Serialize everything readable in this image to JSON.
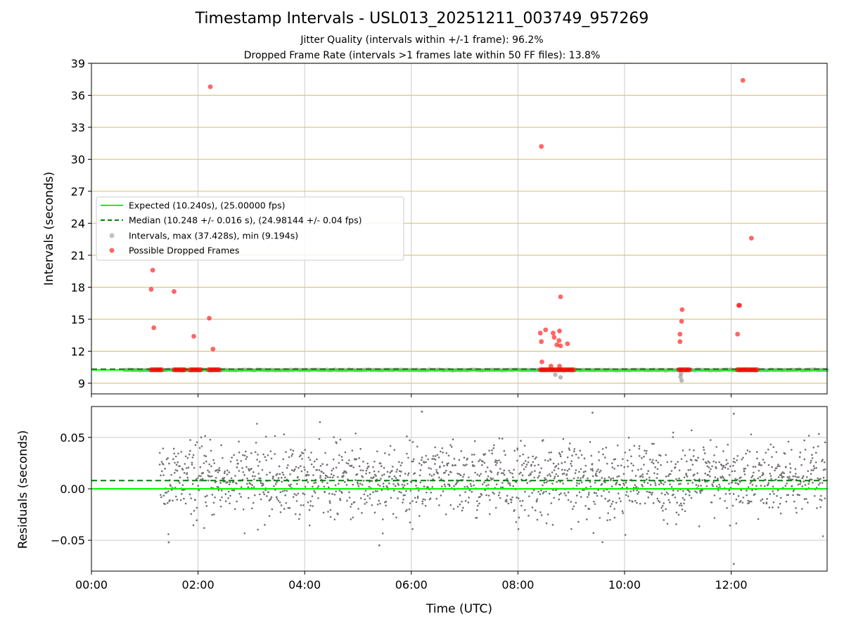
{
  "chart_data": [
    {
      "type": "scatter",
      "title": "Timestamp Intervals - USL013_20251211_003749_957269",
      "subtitle_lines": [
        "Jitter Quality (intervals within +/-1 frame): 96.2%",
        "Dropped Frame Rate (intervals >1 frames late within 50 FF files): 13.8%"
      ],
      "xlabel": "",
      "ylabel": "Intervals (seconds)",
      "xlim_hours": [
        0,
        13.8
      ],
      "ylim": [
        8,
        39
      ],
      "yticks": [
        9,
        12,
        15,
        18,
        21,
        24,
        27,
        30,
        33,
        36,
        39
      ],
      "ytick_labels": [
        "9",
        "12",
        "15",
        "18",
        "21",
        "24",
        "27",
        "30",
        "33",
        "36",
        "39"
      ],
      "xticks_hours": [
        0,
        2,
        4,
        6,
        8,
        10,
        12
      ],
      "grid": true,
      "legend_position": "center-left",
      "expected_interval": 10.24,
      "median_interval": 10.248,
      "series": [
        {
          "name": "Expected (10.240s), (25.00000 fps)",
          "kind": "line",
          "color": "#00ff00",
          "style": "solid",
          "y": 10.24
        },
        {
          "name": "Median (10.248 +/- 0.016 s), (24.98144 +/- 0.04 fps)",
          "kind": "line",
          "color": "#008000",
          "style": "dashed",
          "y": 10.248
        },
        {
          "name": "Intervals, max (37.428s), min (9.194s)",
          "kind": "scatter",
          "color": "#808080",
          "points": [
            [
              8.7,
              9.8
            ],
            [
              8.8,
              9.55
            ],
            [
              11.05,
              9.6
            ],
            [
              11.07,
              9.25
            ],
            [
              11.06,
              9.9
            ]
          ]
        },
        {
          "name": "Possible Dropped Frames",
          "kind": "scatter",
          "color": "#ff0000",
          "points": [
            [
              1.15,
              19.6
            ],
            [
              1.12,
              17.8
            ],
            [
              1.17,
              14.2
            ],
            [
              1.55,
              17.6
            ],
            [
              1.92,
              13.4
            ],
            [
              2.21,
              15.1
            ],
            [
              2.23,
              36.8
            ],
            [
              2.28,
              12.2
            ],
            [
              8.42,
              13.7
            ],
            [
              8.44,
              12.9
            ],
            [
              8.44,
              31.2
            ],
            [
              8.52,
              14.0
            ],
            [
              8.66,
              13.7
            ],
            [
              8.68,
              13.3
            ],
            [
              8.73,
              12.6
            ],
            [
              8.77,
              13.0
            ],
            [
              8.78,
              13.9
            ],
            [
              8.8,
              17.1
            ],
            [
              8.8,
              12.5
            ],
            [
              8.78,
              10.6
            ],
            [
              8.62,
              10.6
            ],
            [
              8.45,
              11.0
            ],
            [
              8.93,
              12.7
            ],
            [
              11.04,
              13.6
            ],
            [
              11.04,
              12.9
            ],
            [
              11.07,
              14.8
            ],
            [
              11.08,
              15.9
            ],
            [
              12.12,
              13.6
            ],
            [
              12.14,
              16.3
            ],
            [
              12.16,
              16.3
            ],
            [
              12.22,
              37.4
            ],
            [
              12.38,
              22.6
            ]
          ]
        }
      ],
      "dense_dropped_runs": [
        {
          "x0": 1.12,
          "x1": 1.33,
          "y": 10.26
        },
        {
          "x0": 1.55,
          "x1": 1.75,
          "y": 10.26
        },
        {
          "x0": 1.85,
          "x1": 2.06,
          "y": 10.26
        },
        {
          "x0": 2.2,
          "x1": 2.4,
          "y": 10.26
        },
        {
          "x0": 8.42,
          "x1": 9.05,
          "y": 10.26
        },
        {
          "x0": 11.02,
          "x1": 11.25,
          "y": 10.26
        },
        {
          "x0": 12.12,
          "x1": 12.5,
          "y": 10.26
        }
      ],
      "data_range_hours": [
        0.62,
        13.8
      ]
    },
    {
      "type": "scatter",
      "xlabel": "Time (UTC)",
      "ylabel": "Residuals (seconds)",
      "xlim_hours": [
        0,
        13.8
      ],
      "ylim": [
        -0.08,
        0.08
      ],
      "yticks": [
        -0.05,
        0.0,
        0.05
      ],
      "ytick_labels": [
        "−0.05",
        "0.00",
        "0.05"
      ],
      "xticks_hours": [
        0,
        2,
        4,
        6,
        8,
        10,
        12
      ],
      "xtick_labels": [
        "00:00",
        "02:00",
        "04:00",
        "06:00",
        "08:00",
        "10:00",
        "12:00"
      ],
      "grid": true,
      "expected_residual": 0.0,
      "median_residual": 0.008,
      "residual_point_color": "#707070",
      "residual_spread_std": 0.018,
      "outliers": [
        [
          6.2,
          0.075
        ],
        [
          9.4,
          0.074
        ],
        [
          12.05,
          0.073
        ],
        [
          12.05,
          -0.073
        ],
        [
          5.4,
          -0.055
        ],
        [
          1.45,
          -0.052
        ]
      ]
    }
  ]
}
